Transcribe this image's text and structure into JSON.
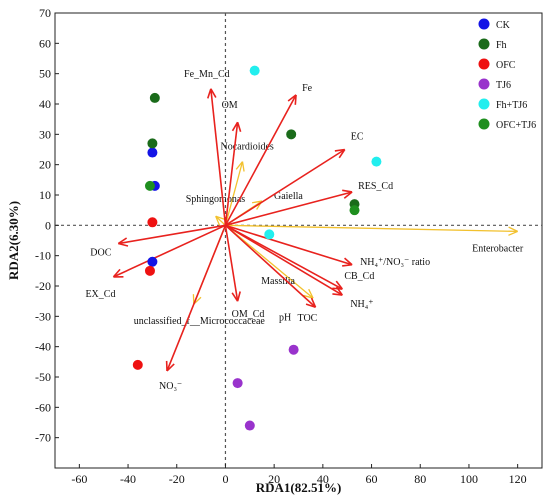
{
  "chart_data": {
    "type": "scatter",
    "xlabel": "RDA1(82.51%)",
    "ylabel": "RDA2(6.30%)",
    "xlim": [
      -70,
      130
    ],
    "ylim": [
      -80,
      70
    ],
    "x_ticks": [
      -60,
      -40,
      -20,
      0,
      20,
      40,
      60,
      80,
      100,
      120
    ],
    "y_ticks": [
      70,
      60,
      50,
      40,
      30,
      20,
      10,
      0,
      -10,
      -20,
      -30,
      -40,
      -50,
      -60,
      -70
    ],
    "grid": false,
    "reference_lines": [
      {
        "axis": "x",
        "value": 0,
        "style": "dashed"
      },
      {
        "axis": "y",
        "value": 0,
        "style": "dashed"
      }
    ],
    "legend_position": "top-right",
    "series": [
      {
        "name": "CK",
        "color": "#1414e6",
        "points": [
          [
            -30,
            24
          ],
          [
            -29,
            13
          ],
          [
            -30,
            -12
          ]
        ]
      },
      {
        "name": "Fh",
        "color": "#1a6b1a",
        "points": [
          [
            -29,
            42
          ],
          [
            -30,
            27
          ],
          [
            27,
            30
          ],
          [
            53,
            7
          ]
        ]
      },
      {
        "name": "OFC",
        "color": "#ee1111",
        "points": [
          [
            -30,
            1
          ],
          [
            -31,
            -15
          ],
          [
            -36,
            -46
          ]
        ]
      },
      {
        "name": "TJ6",
        "color": "#9933cc",
        "points": [
          [
            28,
            -41
          ],
          [
            5,
            -52
          ],
          [
            10,
            -66
          ]
        ]
      },
      {
        "name": "Fh+TJ6",
        "color": "#22eeee",
        "points": [
          [
            12,
            51
          ],
          [
            62,
            21
          ],
          [
            18,
            -3
          ]
        ]
      },
      {
        "name": "OFC+TJ6",
        "color": "#1f8f1f",
        "points": [
          [
            -31,
            13
          ],
          [
            53,
            5
          ]
        ]
      }
    ],
    "environmental_vectors": {
      "color": "#e8221e",
      "items": [
        {
          "label": "Fe_Mn_Cd",
          "x": -6,
          "y": 45
        },
        {
          "label": "OM",
          "x": 5,
          "y": 34
        },
        {
          "label": "Fe",
          "x": 29,
          "y": 43
        },
        {
          "label": "EC",
          "x": 49,
          "y": 25
        },
        {
          "label": "RES_Cd",
          "x": 52,
          "y": 11
        },
        {
          "label": "NH₄⁺/NO₃⁻ ratio",
          "x": 52,
          "y": -13
        },
        {
          "label": "CB_Cd",
          "x": 48,
          "y": -21
        },
        {
          "label": "NH₄⁺",
          "x": 48,
          "y": -23
        },
        {
          "label": "TOC",
          "x": 37,
          "y": -27
        },
        {
          "label": "OM_Cd",
          "x": 5,
          "y": -25
        },
        {
          "label": "EX_Cd",
          "x": -46,
          "y": -17
        },
        {
          "label": "DOC",
          "x": -44,
          "y": -6
        },
        {
          "label": "NO₃⁻",
          "x": -24,
          "y": -48
        }
      ]
    },
    "species_vectors": {
      "color": "#f2c12e",
      "items": [
        {
          "label": "Enterobacter",
          "x": 120,
          "y": -2
        },
        {
          "label": "Nocardioides",
          "x": 7,
          "y": 21
        },
        {
          "label": "Gaiella",
          "x": 15,
          "y": 8
        },
        {
          "label": "Sphingomonas",
          "x": -4,
          "y": 3
        },
        {
          "label": "Massilia",
          "x": 36,
          "y": -24
        },
        {
          "label": "unclassified_f__Micrococcaceae",
          "x": -13,
          "y": -26
        }
      ]
    },
    "extra_labels": [
      {
        "text": "pH",
        "x": 22,
        "y": -30
      }
    ]
  }
}
